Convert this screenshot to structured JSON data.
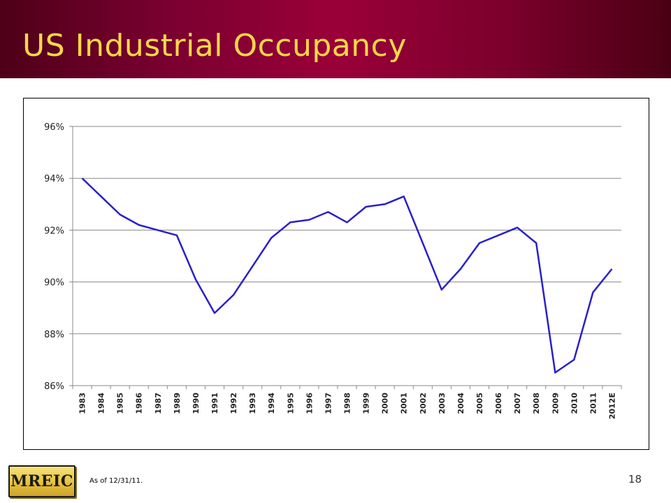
{
  "slide": {
    "title": "US Industrial Occupancy",
    "footnote": "As of 12/31/11.",
    "page_number": "18",
    "logo_text": "MREIC"
  },
  "colors": {
    "header_dark": "#4e0018",
    "header_mid": "#9a0038",
    "title_color": "#ffd84a",
    "line_color": "#2a20c8",
    "grid_color": "#8a8a8a",
    "logo_gold": "#e5c23c"
  },
  "chart_data": {
    "type": "line",
    "title": "",
    "xlabel": "",
    "ylabel": "",
    "ylim": [
      86,
      96
    ],
    "yticks": [
      "86%",
      "88%",
      "90%",
      "92%",
      "94%",
      "96%"
    ],
    "ytick_values": [
      86,
      88,
      90,
      92,
      94,
      96
    ],
    "grid": true,
    "legend": "none",
    "categories": [
      "1983",
      "1984",
      "1985",
      "1986",
      "1987",
      "1989",
      "1990",
      "1991",
      "1992",
      "1993",
      "1994",
      "1995",
      "1996",
      "1997",
      "1998",
      "1999",
      "2000",
      "2001",
      "2002",
      "2003",
      "2004",
      "2005",
      "2006",
      "2007",
      "2008",
      "2009",
      "2010",
      "2011",
      "2012E"
    ],
    "series": [
      {
        "values": [
          94.0,
          93.3,
          92.6,
          92.2,
          92.0,
          91.8,
          90.1,
          88.8,
          89.5,
          90.6,
          91.7,
          92.3,
          92.4,
          92.7,
          92.3,
          92.9,
          93.0,
          93.3,
          91.5,
          89.7,
          90.5,
          91.5,
          91.8,
          92.1,
          91.5,
          86.5,
          87.0,
          89.6,
          90.5
        ]
      }
    ]
  }
}
